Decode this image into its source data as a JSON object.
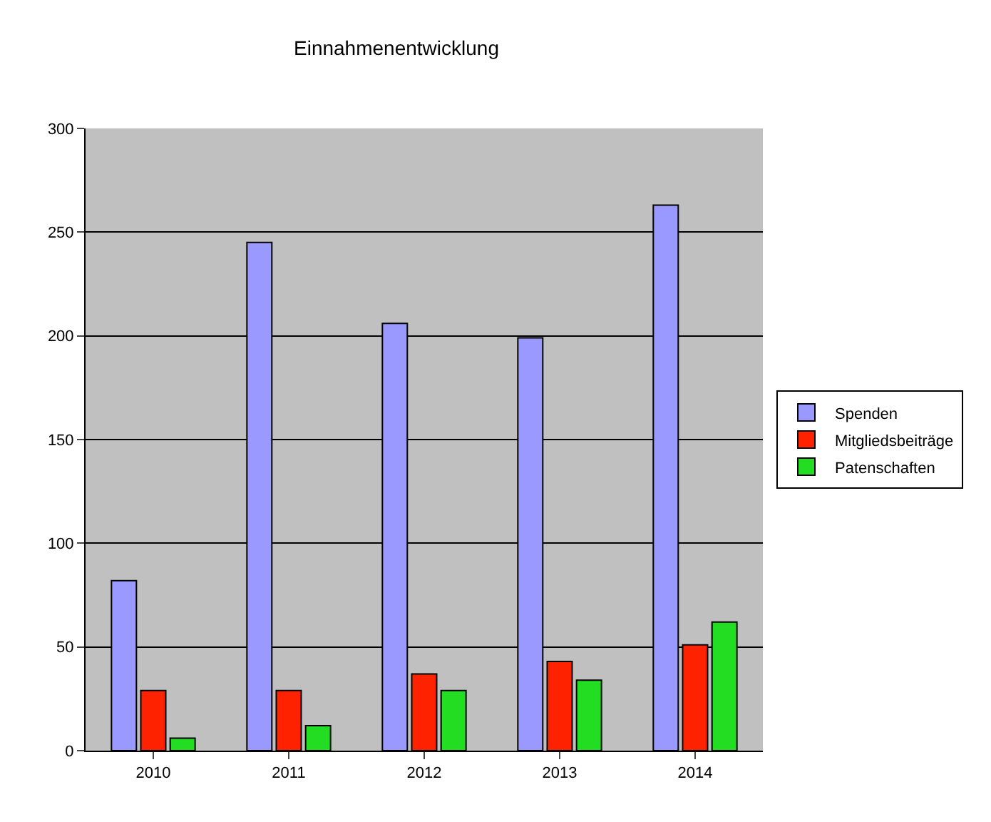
{
  "chart_data": {
    "type": "bar",
    "title": "Einnahmenentwicklung",
    "categories": [
      "2010",
      "2011",
      "2012",
      "2013",
      "2014"
    ],
    "series": [
      {
        "name": "Spenden",
        "color": "#9999ff",
        "values": [
          82,
          245,
          206,
          199,
          263
        ]
      },
      {
        "name": "Mitgliedsbeiträge",
        "color": "#ff2200",
        "values": [
          29,
          29,
          37,
          43,
          51
        ]
      },
      {
        "name": "Patenschaften",
        "color": "#22dd22",
        "values": [
          6,
          12,
          29,
          34,
          62
        ]
      }
    ],
    "ylim": [
      0,
      300
    ],
    "yticks": [
      0,
      50,
      100,
      150,
      200,
      250,
      300
    ],
    "grid": "y",
    "legend": "right"
  }
}
